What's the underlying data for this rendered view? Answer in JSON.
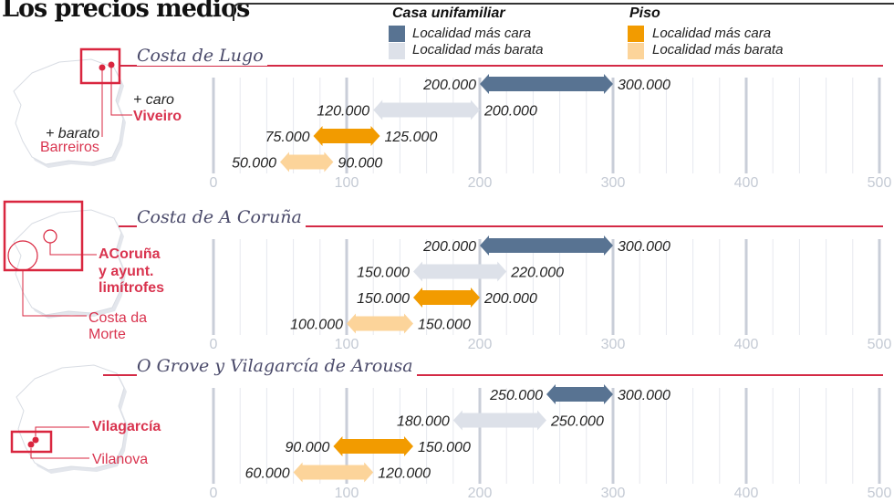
{
  "title": "Los precios medios",
  "legend": {
    "casa": {
      "title": "Casa unifamiliar",
      "cara": "Localidad más cara",
      "barata": "Localidad más barata"
    },
    "piso": {
      "title": "Piso",
      "cara": "Localidad más cara",
      "barata": "Localidad más barata"
    }
  },
  "colors": {
    "casa_cara": "#587392",
    "casa_barata": "#dde1e9",
    "piso_cara": "#f29b00",
    "piso_barata": "#fcd49a",
    "accent": "#d9263f"
  },
  "maps": [
    {
      "caro_label": "+ caro",
      "caro_place": "Viveiro",
      "barato_label": "+ barato",
      "barato_place": "Barreiros"
    },
    {
      "caro_place_lines": [
        "ACoruña",
        "y ayunt.",
        "limítrofes"
      ],
      "barato_place_lines": [
        "Costa da",
        "Morte"
      ]
    },
    {
      "caro_place": "Vilagarcía",
      "barato_place": "Vilanova"
    }
  ],
  "chart_data": [
    {
      "type": "range-bar",
      "title": "Costa de Lugo",
      "xlim": [
        0,
        500
      ],
      "xticks": [
        "0",
        "100",
        "200",
        "300",
        "400",
        "500"
      ],
      "grid": true,
      "series": [
        {
          "name": "Casa unifamiliar - Localidad más cara",
          "min": 200,
          "max": 300,
          "min_label": "200.000",
          "max_label": "300.000"
        },
        {
          "name": "Casa unifamiliar - Localidad más barata",
          "min": 120,
          "max": 200,
          "min_label": "120.000",
          "max_label": "200.000"
        },
        {
          "name": "Piso - Localidad más cara",
          "min": 75,
          "max": 125,
          "min_label": "75.000",
          "max_label": "125.000"
        },
        {
          "name": "Piso - Localidad más barata",
          "min": 50,
          "max": 90,
          "min_label": "50.000",
          "max_label": "90.000"
        }
      ]
    },
    {
      "type": "range-bar",
      "title": "Costa de A Coruña",
      "xlim": [
        0,
        500
      ],
      "xticks": [
        "0",
        "100",
        "200",
        "300",
        "400",
        "500"
      ],
      "grid": true,
      "series": [
        {
          "name": "Casa unifamiliar - Localidad más cara",
          "min": 200,
          "max": 300,
          "min_label": "200.000",
          "max_label": "300.000"
        },
        {
          "name": "Casa unifamiliar - Localidad más barata",
          "min": 150,
          "max": 220,
          "min_label": "150.000",
          "max_label": "220.000"
        },
        {
          "name": "Piso - Localidad más cara",
          "min": 150,
          "max": 200,
          "min_label": "150.000",
          "max_label": "200.000"
        },
        {
          "name": "Piso - Localidad más barata",
          "min": 100,
          "max": 150,
          "min_label": "100.000",
          "max_label": "150.000"
        }
      ]
    },
    {
      "type": "range-bar",
      "title": "O Grove y Vilagarcía de Arousa",
      "xlim": [
        0,
        500
      ],
      "xticks": [
        "0",
        "100",
        "200",
        "300",
        "400",
        "500"
      ],
      "grid": true,
      "series": [
        {
          "name": "Casa unifamiliar - Localidad más cara",
          "min": 250,
          "max": 300,
          "min_label": "250.000",
          "max_label": "300.000"
        },
        {
          "name": "Casa unifamiliar - Localidad más barata",
          "min": 180,
          "max": 250,
          "min_label": "180.000",
          "max_label": "250.000"
        },
        {
          "name": "Piso - Localidad más cara",
          "min": 90,
          "max": 150,
          "min_label": "90.000",
          "max_label": "150.000"
        },
        {
          "name": "Piso - Localidad más barata",
          "min": 60,
          "max": 120,
          "min_label": "60.000",
          "max_label": "120.000"
        }
      ]
    }
  ]
}
